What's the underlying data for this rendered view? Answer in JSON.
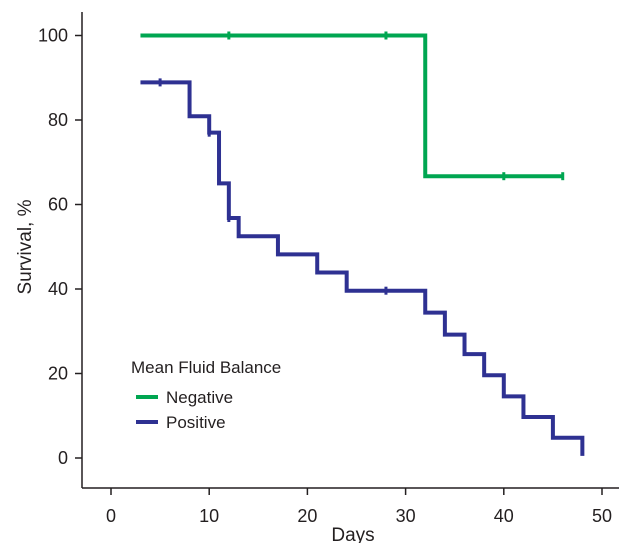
{
  "chart_data": {
    "type": "line",
    "subtype": "step",
    "title": "",
    "xlabel": "Days",
    "ylabel": "Survival, %",
    "xlim": [
      -3,
      52
    ],
    "ylim": [
      -5,
      105
    ],
    "xticks": [
      0,
      10,
      20,
      30,
      40,
      50
    ],
    "xtick_labels": [
      "0",
      "10",
      "20",
      "30",
      "40",
      "50"
    ],
    "yticks": [
      0,
      20,
      40,
      60,
      80,
      100
    ],
    "ytick_labels": [
      "0",
      "20",
      "40",
      "60",
      "80",
      "100"
    ],
    "grid": false,
    "legend": {
      "title": "Mean Fluid Balance",
      "placement": "bottom-left",
      "entries": [
        "Negative",
        "Positive"
      ]
    },
    "series": [
      {
        "name": "Negative",
        "color": "#00a651",
        "x": [
          3,
          32,
          46
        ],
        "y": [
          100,
          66.7,
          66.7
        ],
        "censored": [
          [
            12,
            100
          ],
          [
            28,
            100
          ],
          [
            40,
            66.7
          ],
          [
            46,
            66.7
          ]
        ]
      },
      {
        "name": "Positive",
        "color": "#2e3192",
        "x": [
          3,
          8,
          10,
          11,
          12,
          13,
          17,
          21,
          24,
          32,
          34,
          36,
          38,
          40,
          42,
          45,
          48
        ],
        "y": [
          88.9,
          80.9,
          77.0,
          65.0,
          56.8,
          52.5,
          48.2,
          43.9,
          39.6,
          34.4,
          29.2,
          24.6,
          19.6,
          14.6,
          9.7,
          4.8,
          4.8
        ],
        "end": [
          48,
          0.5
        ],
        "censored": [
          [
            5,
            88.9
          ],
          [
            10,
            77.0
          ],
          [
            12,
            56.8
          ],
          [
            28,
            39.6
          ]
        ]
      }
    ]
  }
}
